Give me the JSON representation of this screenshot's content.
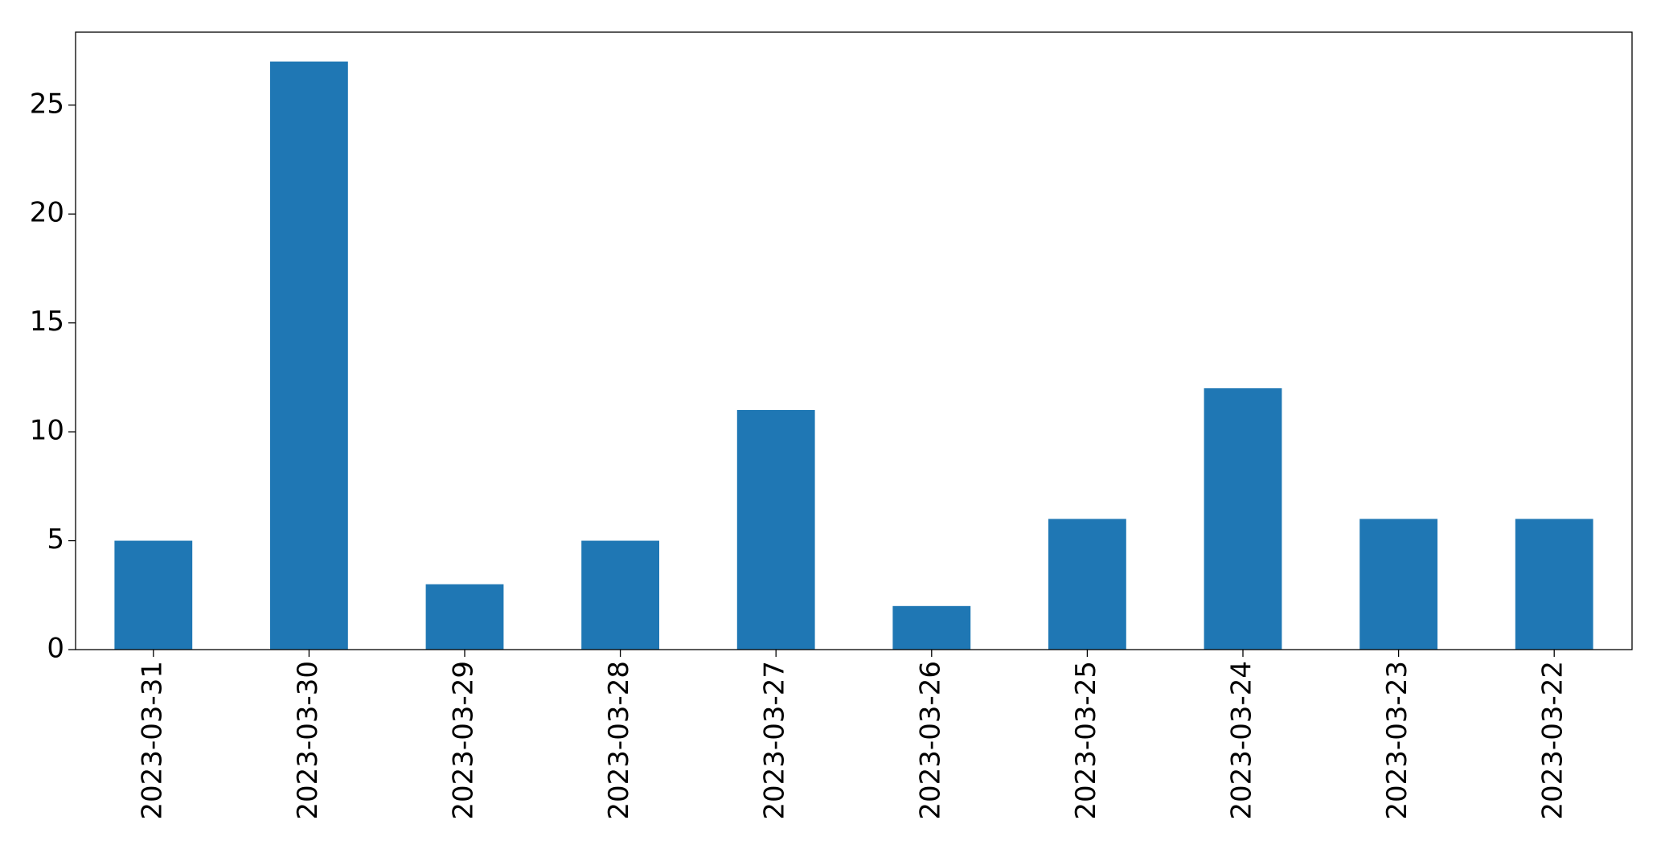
{
  "chart_data": {
    "type": "bar",
    "categories": [
      "2023-03-31",
      "2023-03-30",
      "2023-03-29",
      "2023-03-28",
      "2023-03-27",
      "2023-03-26",
      "2023-03-25",
      "2023-03-24",
      "2023-03-23",
      "2023-03-22"
    ],
    "values": [
      5,
      27,
      3,
      5,
      11,
      2,
      6,
      12,
      6,
      6
    ],
    "color": "#1f77b4",
    "ylim": [
      0,
      28.35
    ],
    "yticks": [
      0,
      5,
      10,
      15,
      20,
      25
    ],
    "grid": false
  }
}
